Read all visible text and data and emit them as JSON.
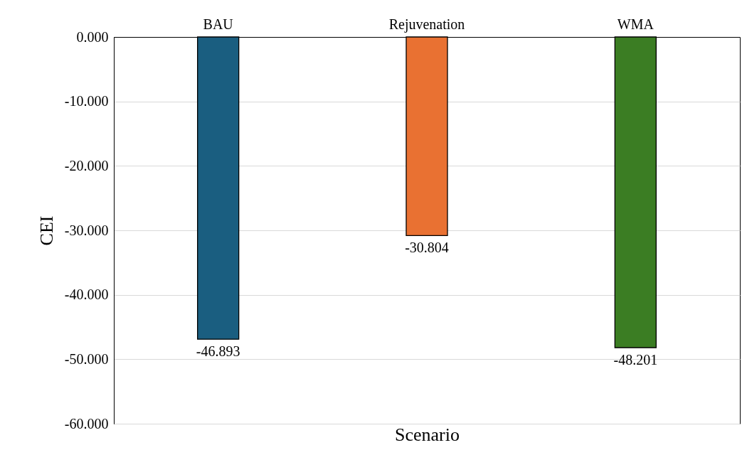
{
  "chart_data": {
    "type": "bar",
    "xlabel": "Scenario",
    "ylabel": "CEI",
    "categories": [
      "BAU",
      "Rejuvenation",
      "WMA"
    ],
    "values": [
      -46.893,
      -30.804,
      -48.201
    ],
    "colors": [
      "#1a5e80",
      "#e97132",
      "#3b7d23"
    ],
    "ylim": [
      -60,
      0
    ],
    "yticks": [
      {
        "value": 0,
        "label": "0.000"
      },
      {
        "value": -10,
        "label": "-10.000"
      },
      {
        "value": -20,
        "label": "-20.000"
      },
      {
        "value": -30,
        "label": "-30.000"
      },
      {
        "value": -40,
        "label": "-40.000"
      },
      {
        "value": -50,
        "label": "-50.000"
      },
      {
        "value": -60,
        "label": "-60.000"
      }
    ],
    "grid": "y",
    "data_labels": true
  }
}
